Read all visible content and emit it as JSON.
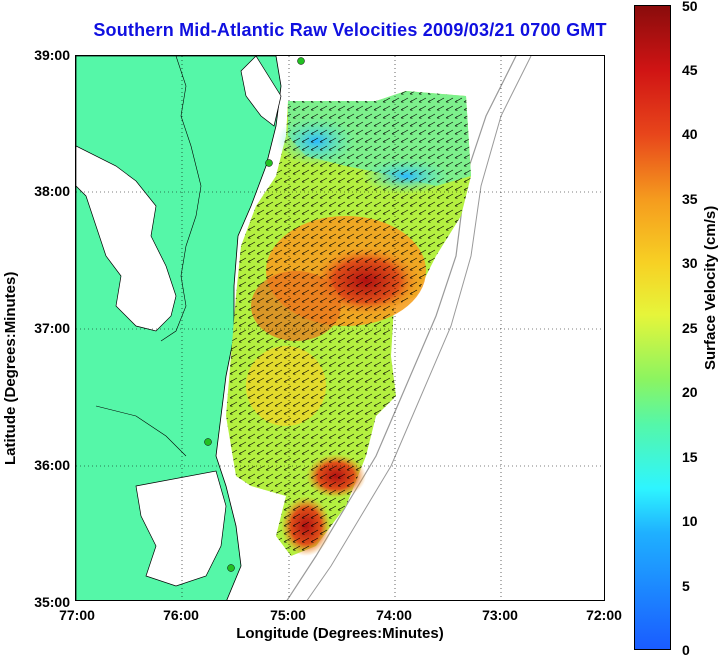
{
  "title": "Southern Mid-Atlantic Raw Velocities 2009/03/21 0700 GMT",
  "x_axis": {
    "label": "Longitude (Degrees:Minutes)",
    "ticks": [
      "77:00",
      "76:00",
      "75:00",
      "74:00",
      "73:00",
      "72:00"
    ]
  },
  "y_axis": {
    "label": "Latitude (Degrees:Minutes)",
    "ticks": [
      "39:00",
      "38:00",
      "37:00",
      "36:00",
      "35:00"
    ]
  },
  "colorbar": {
    "label": "Surface Velocity (cm/s)",
    "ticks": [
      "50",
      "45",
      "40",
      "35",
      "30",
      "25",
      "20",
      "15",
      "10",
      "5",
      "0"
    ],
    "range": [
      0,
      50
    ]
  },
  "colors": {
    "title": "#1010e0",
    "land": "#55f7a8",
    "water": "#ffffff",
    "coast": "#000000",
    "bathymetry": "#9a9a9a",
    "station": "#22c022"
  },
  "map": {
    "stations_count_visible": 5
  }
}
